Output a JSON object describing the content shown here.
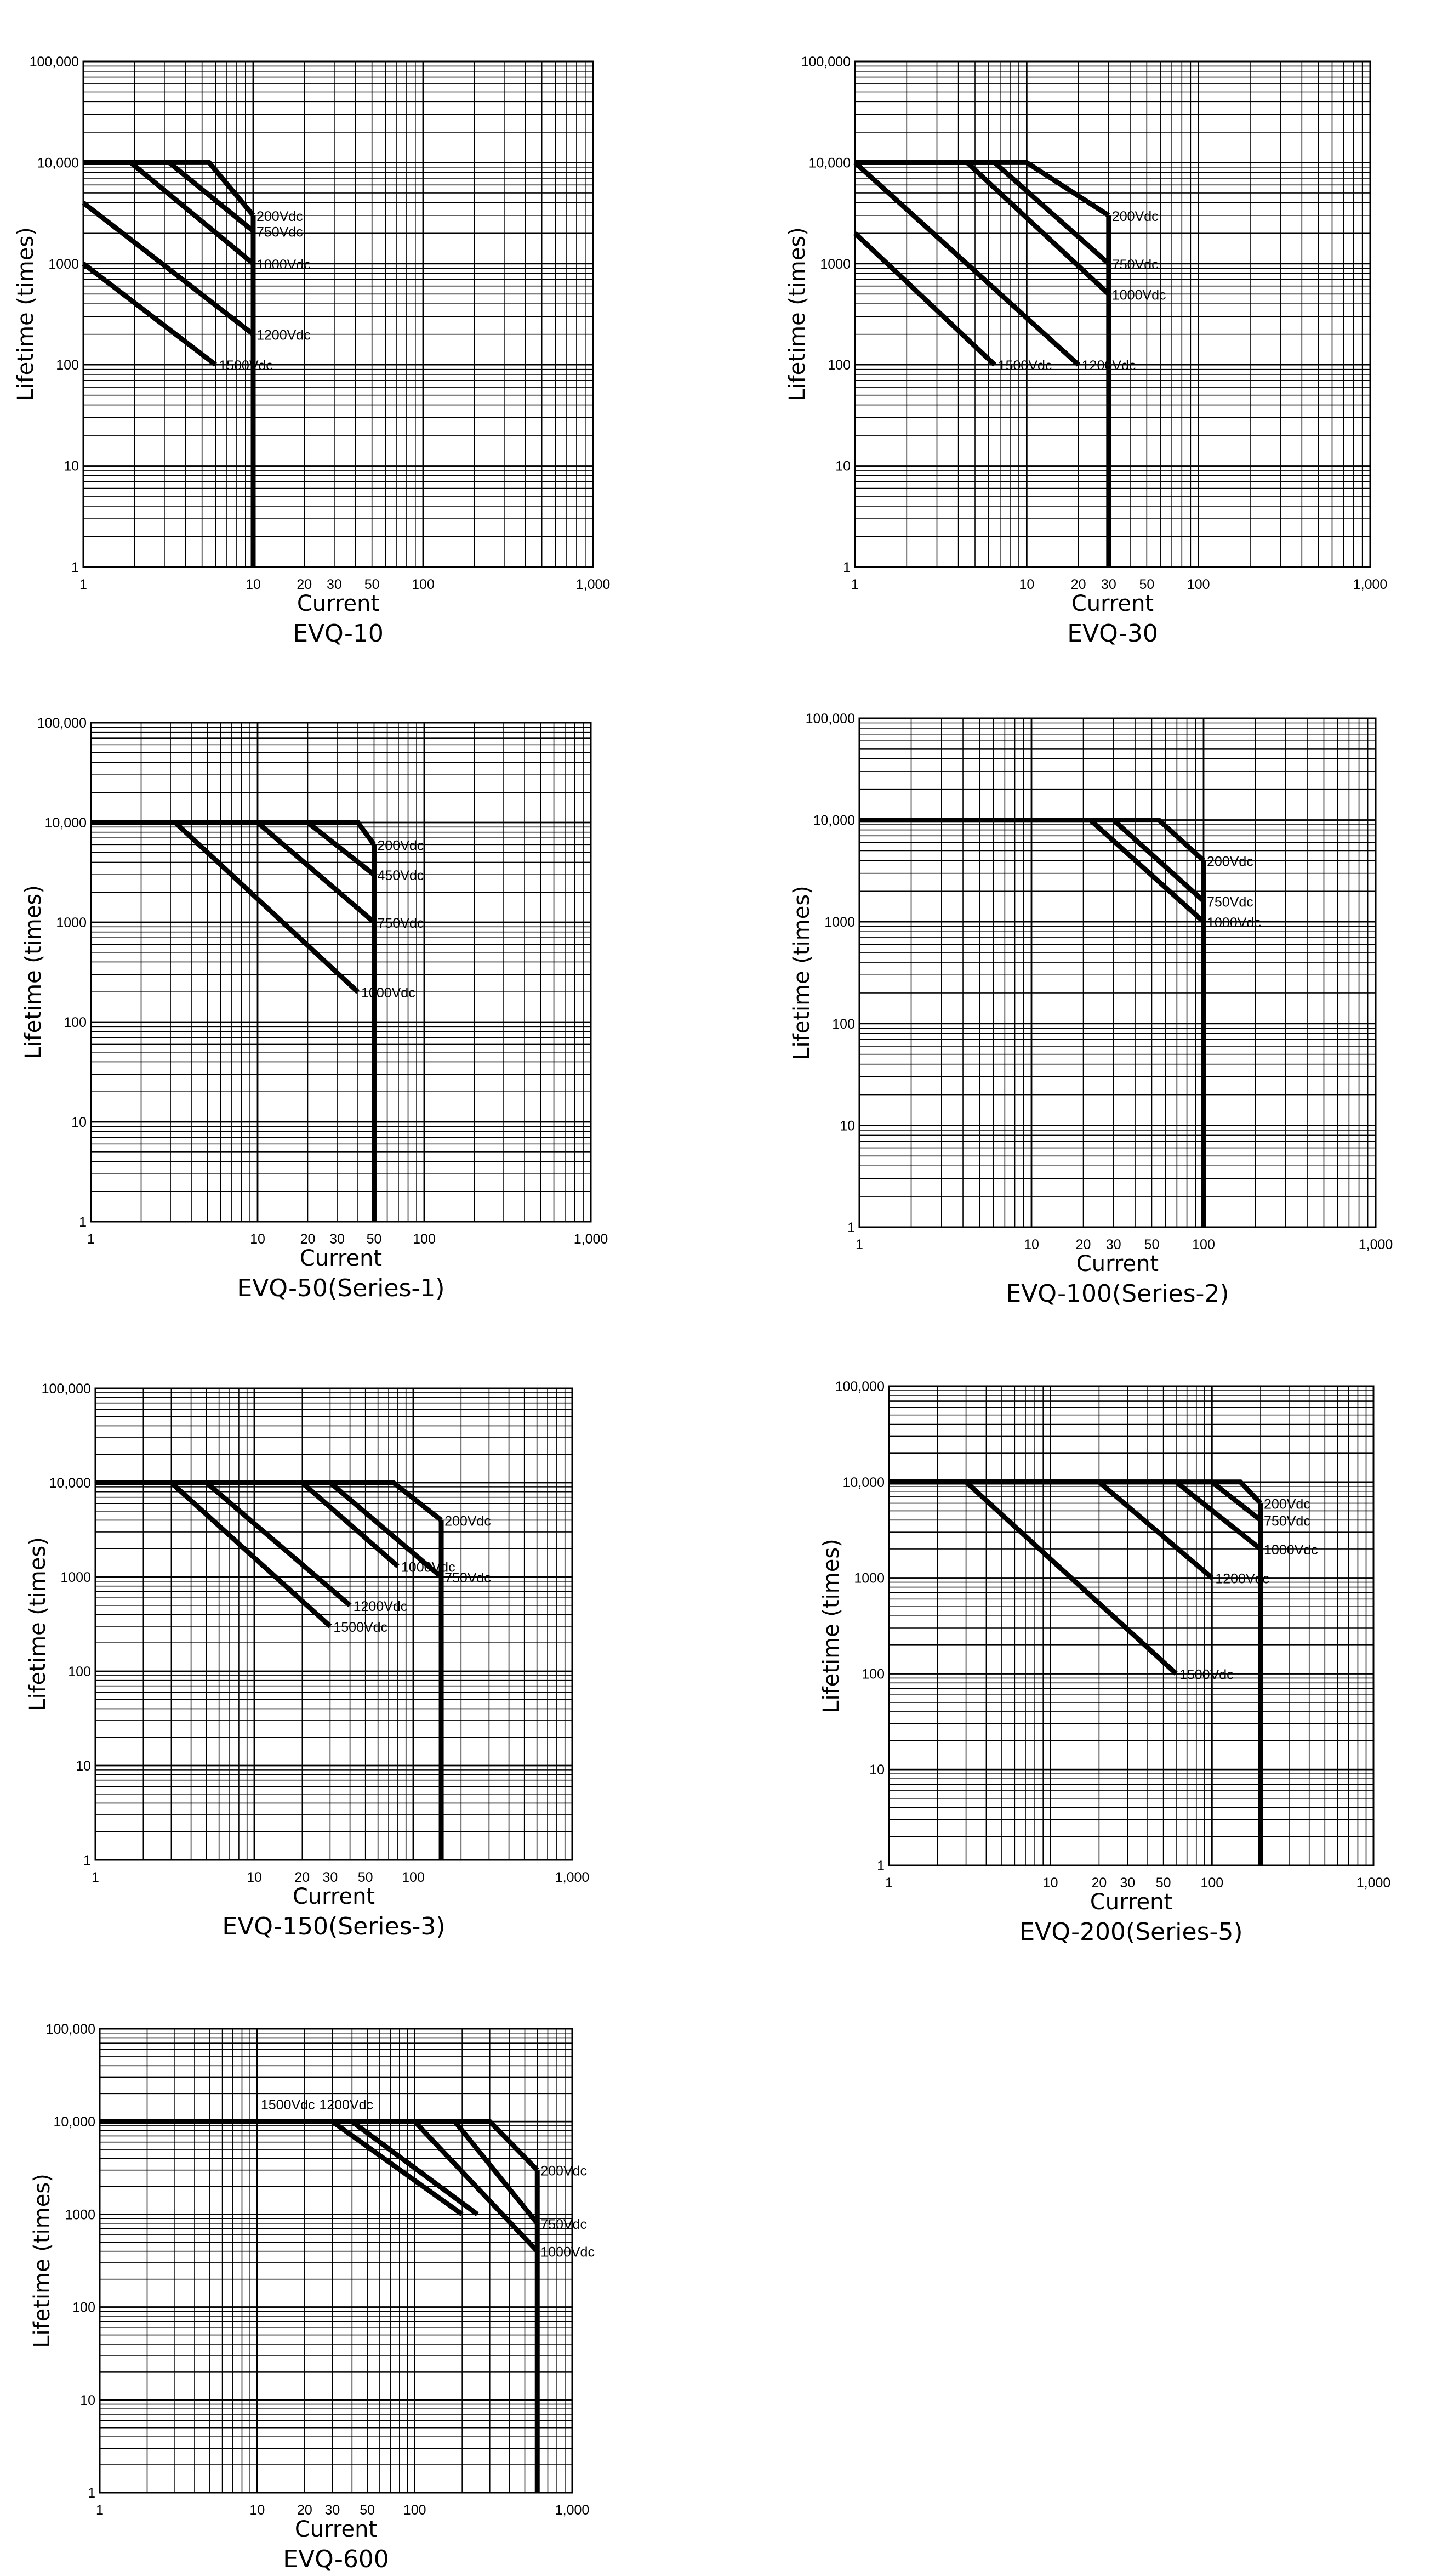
{
  "chart_data": [
    {
      "type": "line",
      "title": "EVQ-10",
      "xlabel": "Current",
      "ylabel": "Lifetime (times)",
      "x_scale": "log",
      "y_scale": "log",
      "xlim": [
        1,
        1000
      ],
      "ylim": [
        1,
        100000
      ],
      "x_ticks": [
        1,
        10,
        20,
        30,
        50,
        100,
        1000
      ],
      "x_tick_labels": [
        "1",
        "10",
        "20",
        "30",
        "50",
        "100",
        "1,000"
      ],
      "y_ticks": [
        1,
        10,
        100,
        1000,
        10000,
        100000
      ],
      "y_tick_labels": [
        "1",
        "10",
        "100",
        "1000",
        "10,000",
        "100,000"
      ],
      "grid": true,
      "series": [
        {
          "name": "200Vdc",
          "x": [
            1,
            5.5,
            10
          ],
          "y": [
            10000,
            10000,
            3000
          ]
        },
        {
          "name": "750Vdc",
          "x": [
            1,
            3.2,
            10
          ],
          "y": [
            10000,
            10000,
            2100
          ]
        },
        {
          "name": "1000Vdc",
          "x": [
            1,
            1.9,
            10
          ],
          "y": [
            10000,
            10000,
            1000
          ]
        },
        {
          "name": "1200Vdc",
          "x": [
            1,
            10
          ],
          "y": [
            4000,
            200
          ]
        },
        {
          "name": "1500Vdc",
          "x": [
            1,
            6
          ],
          "y": [
            1000,
            100
          ]
        }
      ],
      "cutoff_x": 10,
      "labels": [
        {
          "text": "200Vdc",
          "series": "200Vdc",
          "x": 10,
          "y": 3000
        },
        {
          "text": "750Vdc",
          "series": "750Vdc",
          "x": 10,
          "y": 2100
        },
        {
          "text": "1000Vdc",
          "series": "1000Vdc",
          "x": 10,
          "y": 1000
        },
        {
          "text": "1200Vdc",
          "series": "1200Vdc",
          "x": 10,
          "y": 200
        },
        {
          "text": "1500Vdc",
          "series": "1500Vdc",
          "x": 6,
          "y": 100
        }
      ]
    },
    {
      "type": "line",
      "title": "EVQ-30",
      "xlabel": "Current",
      "ylabel": "Lifetime (times)",
      "x_scale": "log",
      "y_scale": "log",
      "xlim": [
        1,
        1000
      ],
      "ylim": [
        1,
        100000
      ],
      "x_ticks": [
        1,
        10,
        20,
        30,
        50,
        100,
        1000
      ],
      "x_tick_labels": [
        "1",
        "10",
        "20",
        "30",
        "50",
        "100",
        "1,000"
      ],
      "y_ticks": [
        1,
        10,
        100,
        1000,
        10000,
        100000
      ],
      "y_tick_labels": [
        "1",
        "10",
        "100",
        "1000",
        "10,000",
        "100,000"
      ],
      "grid": true,
      "series": [
        {
          "name": "200Vdc",
          "x": [
            1,
            10,
            30
          ],
          "y": [
            10000,
            10000,
            3000
          ]
        },
        {
          "name": "750Vdc",
          "x": [
            1,
            6.5,
            30
          ],
          "y": [
            10000,
            10000,
            1000
          ]
        },
        {
          "name": "1000Vdc",
          "x": [
            1,
            4.5,
            30
          ],
          "y": [
            10000,
            10000,
            500
          ]
        },
        {
          "name": "1200Vdc",
          "x": [
            1,
            20
          ],
          "y": [
            10000,
            100
          ]
        },
        {
          "name": "1500Vdc",
          "x": [
            1,
            6.5
          ],
          "y": [
            2000,
            100
          ]
        }
      ],
      "cutoff_x": 30,
      "labels": [
        {
          "text": "200Vdc",
          "series": "200Vdc",
          "x": 30,
          "y": 3000
        },
        {
          "text": "750Vdc",
          "series": "750Vdc",
          "x": 30,
          "y": 1000
        },
        {
          "text": "1000Vdc",
          "series": "1000Vdc",
          "x": 30,
          "y": 500
        },
        {
          "text": "1200Vdc",
          "series": "1200Vdc",
          "x": 20,
          "y": 100
        },
        {
          "text": "1500Vdc",
          "series": "1500Vdc",
          "x": 6.5,
          "y": 100
        }
      ]
    },
    {
      "type": "line",
      "title": "EVQ-50(Series-1)",
      "xlabel": "Current",
      "ylabel": "Lifetime (times)",
      "x_scale": "log",
      "y_scale": "log",
      "xlim": [
        1,
        1000
      ],
      "ylim": [
        1,
        100000
      ],
      "x_ticks": [
        1,
        10,
        20,
        30,
        50,
        100,
        1000
      ],
      "x_tick_labels": [
        "1",
        "10",
        "20",
        "30",
        "50",
        "100",
        "1,000"
      ],
      "y_ticks": [
        1,
        10,
        100,
        1000,
        10000,
        100000
      ],
      "y_tick_labels": [
        "1",
        "10",
        "100",
        "1000",
        "10,000",
        "100,000"
      ],
      "grid": true,
      "series": [
        {
          "name": "200Vdc",
          "x": [
            1,
            40,
            50
          ],
          "y": [
            10000,
            10000,
            6000
          ]
        },
        {
          "name": "450Vdc",
          "x": [
            1,
            20,
            50
          ],
          "y": [
            10000,
            10000,
            3000
          ]
        },
        {
          "name": "750Vdc",
          "x": [
            1,
            10,
            50
          ],
          "y": [
            10000,
            10000,
            1000
          ]
        },
        {
          "name": "1000Vdc",
          "x": [
            1,
            3.2,
            40
          ],
          "y": [
            10000,
            10000,
            200
          ]
        }
      ],
      "cutoff_x": 50,
      "labels": [
        {
          "text": "200Vdc",
          "series": "200Vdc",
          "x": 50,
          "y": 6000
        },
        {
          "text": "450Vdc",
          "series": "450Vdc",
          "x": 50,
          "y": 3000
        },
        {
          "text": "750Vdc",
          "series": "750Vdc",
          "x": 50,
          "y": 1000
        },
        {
          "text": "1000Vdc",
          "series": "1000Vdc",
          "x": 40,
          "y": 200
        }
      ]
    },
    {
      "type": "line",
      "title": "EVQ-100(Series-2)",
      "xlabel": "Current",
      "ylabel": "Lifetime (times)",
      "x_scale": "log",
      "y_scale": "log",
      "xlim": [
        1,
        1000
      ],
      "ylim": [
        1,
        100000
      ],
      "x_ticks": [
        1,
        10,
        20,
        30,
        50,
        100,
        1000
      ],
      "x_tick_labels": [
        "1",
        "10",
        "20",
        "30",
        "50",
        "100",
        "1,000"
      ],
      "y_ticks": [
        1,
        10,
        100,
        1000,
        10000,
        100000
      ],
      "y_tick_labels": [
        "1",
        "10",
        "100",
        "1000",
        "10,000",
        "100,000"
      ],
      "grid": true,
      "series": [
        {
          "name": "200Vdc",
          "x": [
            1,
            55,
            100
          ],
          "y": [
            10000,
            10000,
            4000
          ]
        },
        {
          "name": "750Vdc",
          "x": [
            1,
            30,
            100
          ],
          "y": [
            10000,
            10000,
            1600
          ]
        },
        {
          "name": "1000Vdc",
          "x": [
            1,
            22,
            100
          ],
          "y": [
            10000,
            10000,
            1000
          ]
        }
      ],
      "cutoff_x": 100,
      "labels": [
        {
          "text": "200Vdc",
          "series": "200Vdc",
          "x": 100,
          "y": 4000
        },
        {
          "text": "750Vdc",
          "series": "750Vdc",
          "x": 100,
          "y": 1600
        },
        {
          "text": "1000Vdc",
          "series": "1000Vdc",
          "x": 100,
          "y": 1000
        }
      ]
    },
    {
      "type": "line",
      "title": "EVQ-150(Series-3)",
      "xlabel": "Current",
      "ylabel": "Lifetime (times)",
      "x_scale": "log",
      "y_scale": "log",
      "xlim": [
        1,
        1000
      ],
      "ylim": [
        1,
        100000
      ],
      "x_ticks": [
        1,
        10,
        20,
        30,
        50,
        100,
        1000
      ],
      "x_tick_labels": [
        "1",
        "10",
        "20",
        "30",
        "50",
        "100",
        "1,000"
      ],
      "y_ticks": [
        1,
        10,
        100,
        1000,
        10000,
        100000
      ],
      "y_tick_labels": [
        "1",
        "10",
        "100",
        "1000",
        "10,000",
        "100,000"
      ],
      "grid": true,
      "series": [
        {
          "name": "200Vdc",
          "x": [
            1,
            75,
            150
          ],
          "y": [
            10000,
            10000,
            4000
          ]
        },
        {
          "name": "750Vdc",
          "x": [
            1,
            30,
            150
          ],
          "y": [
            10000,
            10000,
            1000
          ]
        },
        {
          "name": "1000Vdc",
          "x": [
            1,
            20,
            80
          ],
          "y": [
            10000,
            10000,
            1300
          ]
        },
        {
          "name": "1200Vdc",
          "x": [
            1,
            5,
            40
          ],
          "y": [
            10000,
            10000,
            500
          ]
        },
        {
          "name": "1500Vdc",
          "x": [
            1,
            3,
            30
          ],
          "y": [
            10000,
            10000,
            300
          ]
        }
      ],
      "cutoff_x": 150,
      "labels": [
        {
          "text": "200Vdc",
          "series": "200Vdc",
          "x": 150,
          "y": 4000
        },
        {
          "text": "750Vdc",
          "series": "750Vdc",
          "x": 150,
          "y": 1000
        },
        {
          "text": "1000Vdc",
          "series": "1000Vdc",
          "x": 80,
          "y": 1300
        },
        {
          "text": "1200Vdc",
          "series": "1200Vdc",
          "x": 40,
          "y": 500
        },
        {
          "text": "1500Vdc",
          "series": "1500Vdc",
          "x": 30,
          "y": 300
        }
      ]
    },
    {
      "type": "line",
      "title": "EVQ-200(Series-5)",
      "xlabel": "Current",
      "ylabel": "Lifetime (times)",
      "x_scale": "log",
      "y_scale": "log",
      "xlim": [
        1,
        1000
      ],
      "ylim": [
        1,
        100000
      ],
      "x_ticks": [
        1,
        10,
        20,
        30,
        50,
        100,
        1000
      ],
      "x_tick_labels": [
        "1",
        "10",
        "20",
        "30",
        "50",
        "100",
        "1,000"
      ],
      "y_ticks": [
        1,
        10,
        100,
        1000,
        10000,
        100000
      ],
      "y_tick_labels": [
        "1",
        "10",
        "100",
        "1000",
        "10,000",
        "100,000"
      ],
      "grid": true,
      "series": [
        {
          "name": "200Vdc",
          "x": [
            1,
            150,
            200
          ],
          "y": [
            10000,
            10000,
            6000
          ]
        },
        {
          "name": "750Vdc",
          "x": [
            1,
            100,
            200
          ],
          "y": [
            10000,
            10000,
            4000
          ]
        },
        {
          "name": "1000Vdc",
          "x": [
            1,
            60,
            200
          ],
          "y": [
            10000,
            10000,
            2000
          ]
        },
        {
          "name": "1200Vdc",
          "x": [
            1,
            20,
            100
          ],
          "y": [
            10000,
            10000,
            1000
          ]
        },
        {
          "name": "1500Vdc",
          "x": [
            1,
            3,
            60
          ],
          "y": [
            10000,
            10000,
            100
          ]
        }
      ],
      "cutoff_x": 200,
      "labels": [
        {
          "text": "200Vdc",
          "series": "200Vdc",
          "x": 200,
          "y": 6000
        },
        {
          "text": "750Vdc",
          "series": "750Vdc",
          "x": 200,
          "y": 4000
        },
        {
          "text": "1000Vdc",
          "series": "1000Vdc",
          "x": 200,
          "y": 2000
        },
        {
          "text": "1200Vdc",
          "series": "1200Vdc",
          "x": 100,
          "y": 1000
        },
        {
          "text": "1500Vdc",
          "series": "1500Vdc",
          "x": 60,
          "y": 100
        }
      ]
    },
    {
      "type": "line",
      "title": "EVQ-600",
      "xlabel": "Current",
      "ylabel": "Lifetime (times)",
      "x_scale": "log",
      "y_scale": "log",
      "xlim": [
        1,
        1000
      ],
      "ylim": [
        1,
        100000
      ],
      "x_ticks": [
        1,
        10,
        20,
        30,
        50,
        100,
        1000
      ],
      "x_tick_labels": [
        "1",
        "10",
        "20",
        "30",
        "50",
        "100",
        "1,000"
      ],
      "y_ticks": [
        1,
        10,
        100,
        1000,
        10000,
        100000
      ],
      "y_tick_labels": [
        "1",
        "10",
        "100",
        "1000",
        "10,000",
        "100,000"
      ],
      "grid": true,
      "series": [
        {
          "name": "200Vdc",
          "x": [
            1,
            300,
            600
          ],
          "y": [
            10000,
            10000,
            3000
          ]
        },
        {
          "name": "750Vdc",
          "x": [
            1,
            180,
            600
          ],
          "y": [
            10000,
            10000,
            800
          ]
        },
        {
          "name": "1000Vdc",
          "x": [
            1,
            100,
            600
          ],
          "y": [
            10000,
            10000,
            400
          ]
        },
        {
          "name": "1200Vdc",
          "x": [
            1,
            40,
            250
          ],
          "y": [
            10000,
            10000,
            1000
          ]
        },
        {
          "name": "1500Vdc",
          "x": [
            1,
            30,
            200
          ],
          "y": [
            10000,
            10000,
            1000
          ]
        }
      ],
      "cutoff_x": 600,
      "labels": [
        {
          "text": "200Vdc",
          "series": "200Vdc",
          "x": 600,
          "y": 3000
        },
        {
          "text": "750Vdc",
          "series": "750Vdc",
          "x": 600,
          "y": 800
        },
        {
          "text": "1000Vdc",
          "series": "1000Vdc",
          "x": 600,
          "y": 400
        },
        {
          "text": "1500Vdc",
          "series": "1500Vdc",
          "x": 20,
          "y": 10000
        },
        {
          "text": "1200Vdc",
          "series": "1200Vdc",
          "x": 40,
          "y": 10000
        }
      ]
    }
  ]
}
